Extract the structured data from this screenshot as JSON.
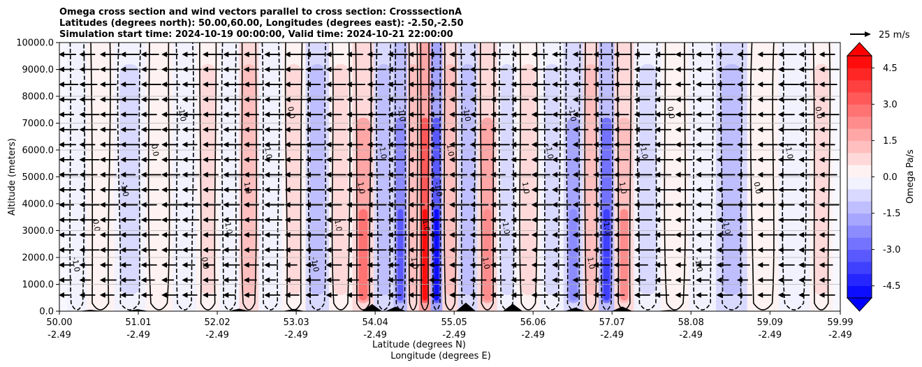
{
  "chart_data": {
    "type": "heatmap",
    "title_lines": [
      "Omega cross section and wind vectors parallel to cross section: CrosssectionA",
      "Latitudes (degrees north): 50.00,60.00, Longitudes (degrees east): -2.50,-2.50",
      "Simulation start time: 2024-10-19 00:00:00, Valid time: 2024-10-21 22:00:00"
    ],
    "xlabel_lat": "Latitude (degrees N)",
    "xlabel_lon": "Longitude (degrees E)",
    "ylabel": "Altitude (meters)",
    "ylim": [
      0,
      10000
    ],
    "xlim": [
      50.0,
      59.99
    ],
    "yticks": [
      "0.0",
      "1000.0",
      "2000.0",
      "3000.0",
      "4000.0",
      "5000.0",
      "6000.0",
      "7000.0",
      "8000.0",
      "9000.0",
      "10000.0"
    ],
    "yticks_values": [
      0,
      1000,
      2000,
      3000,
      4000,
      5000,
      6000,
      7000,
      8000,
      9000,
      10000
    ],
    "xticks": [
      {
        "lat": "50.00",
        "lon": "-2.49",
        "value": 50.0
      },
      {
        "lat": "51.01",
        "lon": "-2.49",
        "value": 51.01
      },
      {
        "lat": "52.02",
        "lon": "-2.49",
        "value": 52.02
      },
      {
        "lat": "53.03",
        "lon": "-2.49",
        "value": 53.03
      },
      {
        "lat": "54.04",
        "lon": "-2.49",
        "value": 54.04
      },
      {
        "lat": "55.05",
        "lon": "-2.49",
        "value": 55.05
      },
      {
        "lat": "56.06",
        "lon": "-2.49",
        "value": 56.06
      },
      {
        "lat": "57.07",
        "lon": "-2.49",
        "value": 57.07
      },
      {
        "lat": "58.08",
        "lon": "-2.49",
        "value": 58.08
      },
      {
        "lat": "59.09",
        "lon": "-2.49",
        "value": 59.09
      },
      {
        "lat": "59.99",
        "lon": "-2.49",
        "value": 59.99
      }
    ],
    "grid": true,
    "colorbar": {
      "label": "Omega Pa/s",
      "cmap": "bwr",
      "range": [
        -5,
        5
      ],
      "ticks": [
        "-4.5",
        "-3.0",
        "-1.5",
        "0.0",
        "1.5",
        "3.0",
        "4.5"
      ],
      "ticks_values": [
        -4.5,
        -3.0,
        -1.5,
        0.0,
        1.5,
        3.0,
        4.5
      ],
      "extend": "both",
      "low_color": "#0000ff",
      "high_color": "#ff0000"
    },
    "quiver_key": {
      "label": "25 m/s",
      "speed": 25
    },
    "vector_direction": "southward (toward lower latitude)",
    "omega_bands": [
      {
        "lat": 50.2,
        "value": -0.4
      },
      {
        "lat": 50.5,
        "value": 0.6
      },
      {
        "lat": 50.9,
        "value": -1.0
      },
      {
        "lat": 51.3,
        "value": 0.7
      },
      {
        "lat": 51.6,
        "value": -0.6
      },
      {
        "lat": 51.9,
        "value": 0.8
      },
      {
        "lat": 52.2,
        "value": -0.6
      },
      {
        "lat": 52.4,
        "value": 1.8
      },
      {
        "lat": 52.7,
        "value": -0.5
      },
      {
        "lat": 53.0,
        "value": 0.9
      },
      {
        "lat": 53.3,
        "value": -1.6
      },
      {
        "lat": 53.6,
        "value": 1.2
      },
      {
        "lat": 53.9,
        "value": 2.8
      },
      {
        "lat": 54.15,
        "value": -1.8
      },
      {
        "lat": 54.4,
        "value": -3.2
      },
      {
        "lat": 54.5,
        "value": 2.0
      },
      {
        "lat": 54.7,
        "value": 4.8
      },
      {
        "lat": 54.8,
        "value": -4.6
      },
      {
        "lat": 55.0,
        "value": 1.6
      },
      {
        "lat": 55.2,
        "value": -1.5
      },
      {
        "lat": 55.5,
        "value": 2.4
      },
      {
        "lat": 55.7,
        "value": -0.8
      },
      {
        "lat": 56.0,
        "value": 1.3
      },
      {
        "lat": 56.3,
        "value": -1.2
      },
      {
        "lat": 56.6,
        "value": -2.2
      },
      {
        "lat": 56.8,
        "value": 1.6
      },
      {
        "lat": 57.0,
        "value": -3.8
      },
      {
        "lat": 57.2,
        "value": 2.1
      },
      {
        "lat": 57.5,
        "value": -0.9
      },
      {
        "lat": 57.9,
        "value": 0.7
      },
      {
        "lat": 58.2,
        "value": -0.6
      },
      {
        "lat": 58.6,
        "value": -1.8
      },
      {
        "lat": 59.0,
        "value": 0.5
      },
      {
        "lat": 59.4,
        "value": -0.4
      },
      {
        "lat": 59.8,
        "value": 0.9
      }
    ],
    "contour_levels": [
      -1.0,
      0.0,
      1.0
    ],
    "terrain": [
      {
        "lat": 50.4,
        "height": 40
      },
      {
        "lat": 51.0,
        "height": 60
      },
      {
        "lat": 52.3,
        "height": 80
      },
      {
        "lat": 53.0,
        "height": 70
      },
      {
        "lat": 54.0,
        "height": 250
      },
      {
        "lat": 54.3,
        "height": 150
      },
      {
        "lat": 55.2,
        "height": 300
      },
      {
        "lat": 55.8,
        "height": 260
      },
      {
        "lat": 56.6,
        "height": 120
      },
      {
        "lat": 57.2,
        "height": 160
      },
      {
        "lat": 57.8,
        "height": 30
      }
    ]
  }
}
